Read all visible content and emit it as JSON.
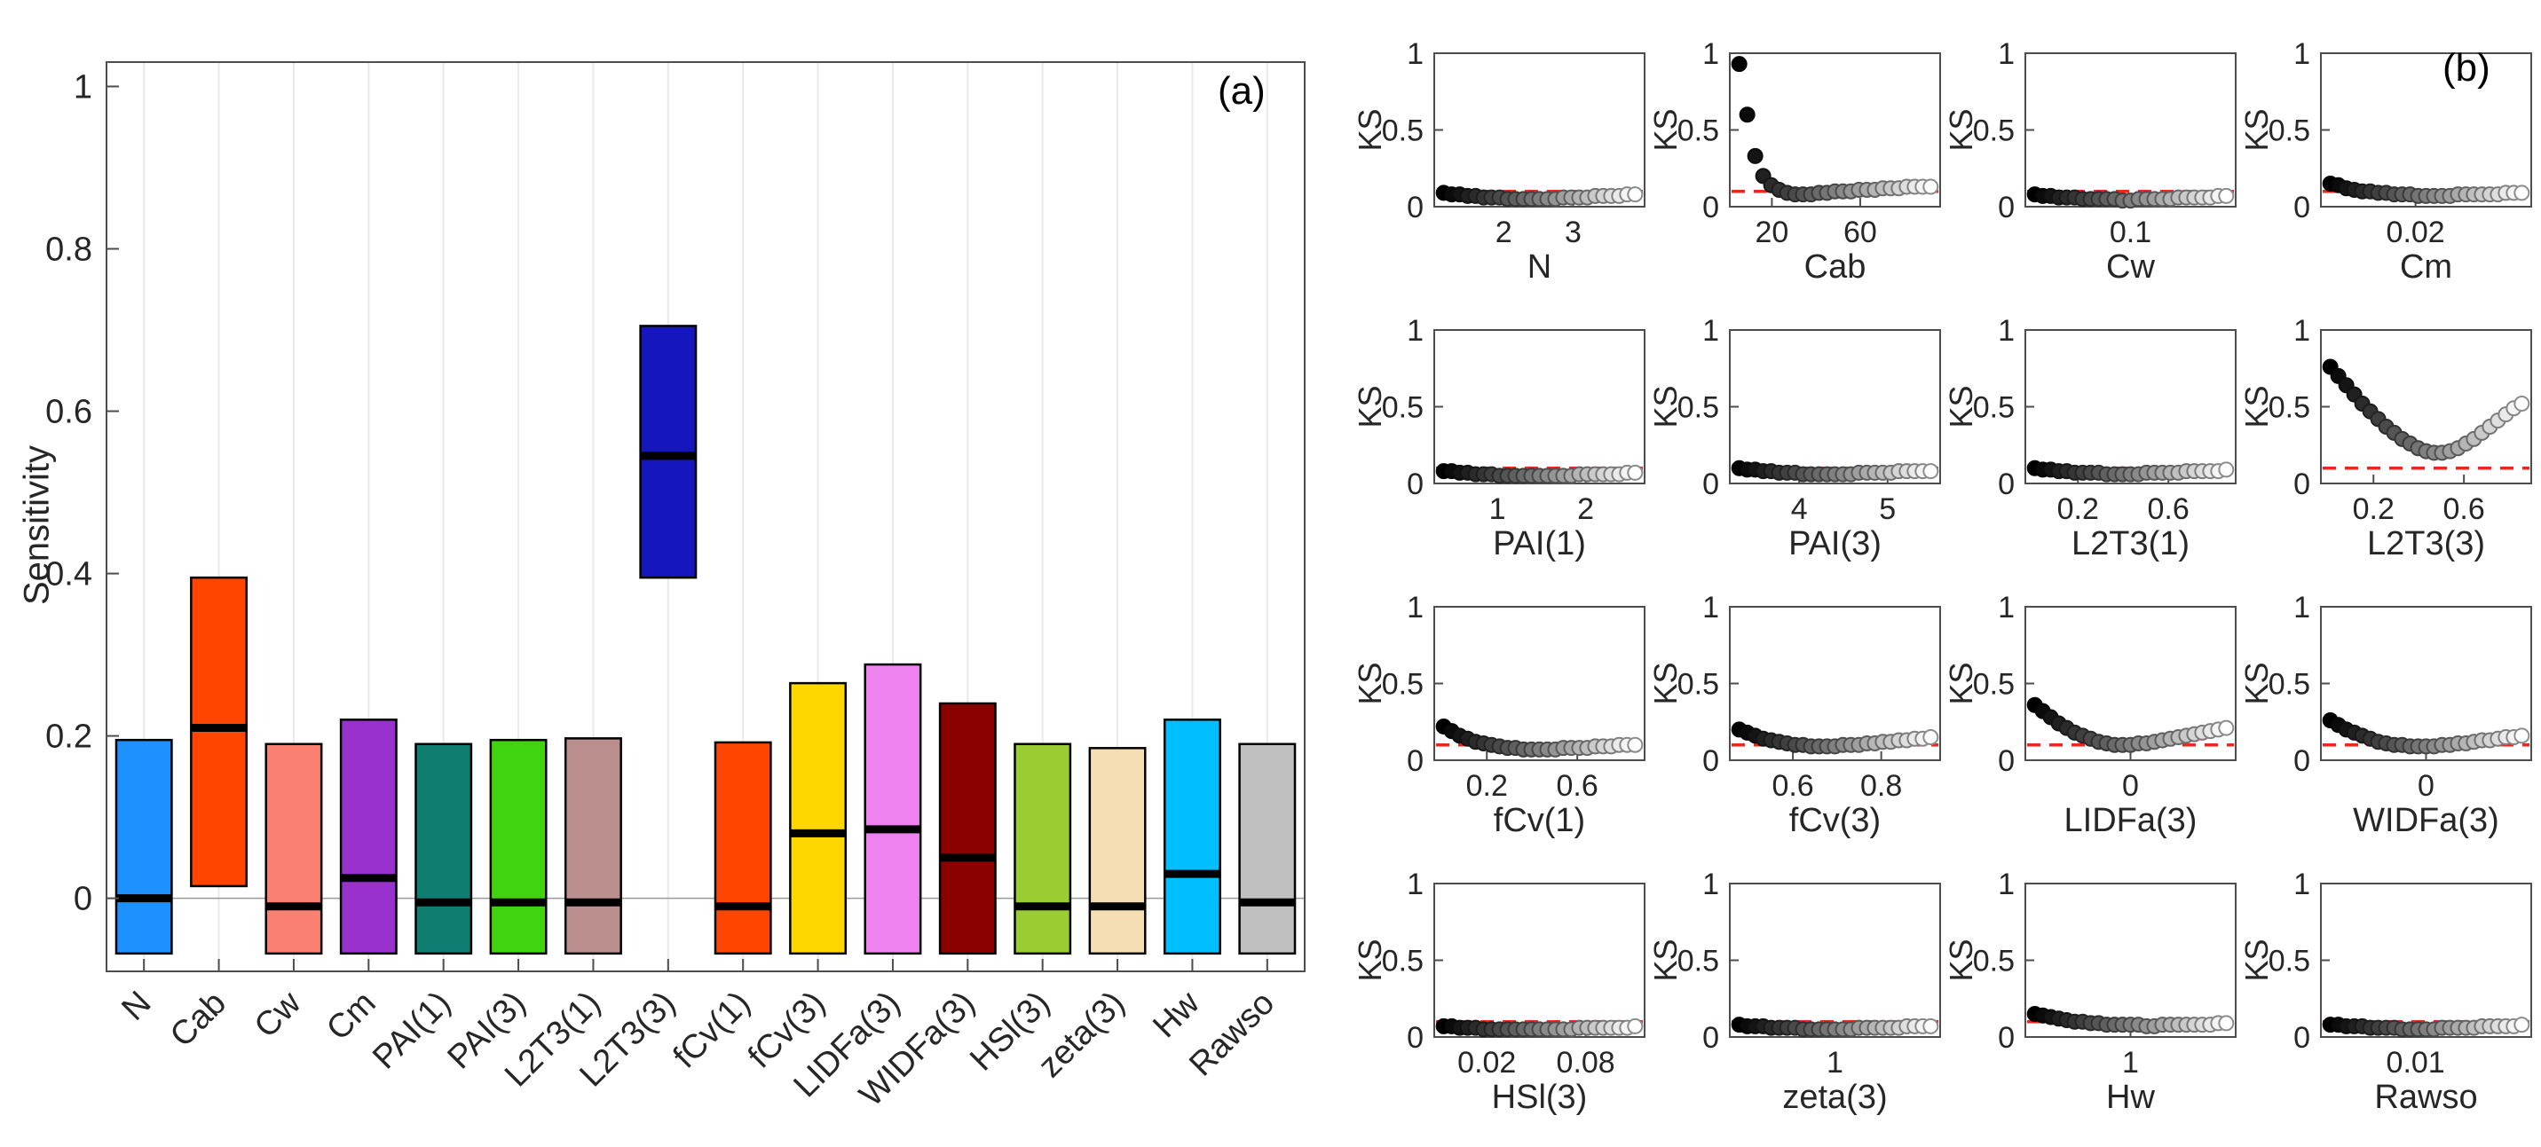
{
  "figure": {
    "background": "#ffffff",
    "panel_a_label": "(a)",
    "panel_b_label": "(b)"
  },
  "chart_data": [
    {
      "id": "panel-a",
      "type": "bar",
      "subtype": "range-bars-with-median",
      "ylabel": "Sensitivity",
      "ylim": [
        -0.09,
        1.03
      ],
      "grid": "vertical-light",
      "zero_line": true,
      "yticks": [
        {
          "label": "0",
          "value": 0
        },
        {
          "label": "0.2",
          "value": 0.2
        },
        {
          "label": "0.4",
          "value": 0.4
        },
        {
          "label": "0.6",
          "value": 0.6
        },
        {
          "label": "0.8",
          "value": 0.8
        },
        {
          "label": "1",
          "value": 1
        }
      ],
      "categories": [
        "N",
        "Cab",
        "Cw",
        "Cm",
        "PAI(1)",
        "PAI(3)",
        "L2T3(1)",
        "L2T3(3)",
        "fCv(1)",
        "fCv(3)",
        "LIDFa(3)",
        "WIDFa(3)",
        "HSl(3)",
        "zeta(3)",
        "Hw",
        "Rawso"
      ],
      "series": [
        {
          "name": "low",
          "values": [
            -0.068,
            0.015,
            -0.068,
            -0.068,
            -0.068,
            -0.068,
            -0.068,
            0.395,
            -0.068,
            -0.068,
            -0.068,
            -0.068,
            -0.068,
            -0.068,
            -0.068,
            -0.068
          ]
        },
        {
          "name": "high",
          "values": [
            0.195,
            0.395,
            0.19,
            0.22,
            0.19,
            0.195,
            0.197,
            0.705,
            0.192,
            0.265,
            0.288,
            0.24,
            0.19,
            0.185,
            0.22,
            0.19
          ]
        },
        {
          "name": "median",
          "values": [
            0.0,
            0.21,
            -0.01,
            0.025,
            -0.005,
            -0.005,
            -0.005,
            0.545,
            -0.01,
            0.08,
            0.085,
            0.05,
            -0.01,
            -0.01,
            0.03,
            -0.005
          ]
        }
      ],
      "bar_colors": [
        "#1E90FF",
        "#FF4500",
        "#FA8072",
        "#9932CC",
        "#0F7D72",
        "#3FD40F",
        "#BC8F8F",
        "#1616BE",
        "#FF4500",
        "#FFD700",
        "#EE82EE",
        "#8B0000",
        "#9ACD32",
        "#F5DEB3",
        "#00BFFF",
        "#C0C0C0"
      ],
      "bar_edge_color": "#000000",
      "median_color": "#000000",
      "axis_color": "#4d4d4d",
      "gridline_color": "#e9e9e9",
      "zero_line_color": "#9a9a9a"
    },
    {
      "id": "panel-b",
      "type": "scatter",
      "subtype": "ks-grid-4x4",
      "ylabel": "KS",
      "ylim": [
        0,
        1
      ],
      "yticks": [
        {
          "label": "0",
          "value": 0
        },
        {
          "label": "0.5",
          "value": 0.5
        },
        {
          "label": "1",
          "value": 1
        }
      ],
      "threshold_line": {
        "value": 0.1,
        "color": "#E8291C",
        "style": "dashed"
      },
      "marker_gradient": [
        "#000000",
        "#ffffff"
      ],
      "marker_edge_gradient": [
        "#000000",
        "#8c8c8c"
      ],
      "axis_color": "#4d4d4d",
      "subplots": [
        {
          "name": "N",
          "xticks": [
            {
              "label": "2",
              "pos": 0.33
            },
            {
              "label": "3",
              "pos": 0.66
            }
          ],
          "ks": [
            0.09,
            0.08,
            0.08,
            0.07,
            0.07,
            0.06,
            0.06,
            0.06,
            0.05,
            0.05,
            0.05,
            0.05,
            0.05,
            0.05,
            0.05,
            0.06,
            0.06,
            0.06,
            0.06,
            0.07,
            0.07,
            0.07,
            0.07,
            0.08,
            0.08
          ]
        },
        {
          "name": "Cab",
          "xticks": [
            {
              "label": "20",
              "pos": 0.2
            },
            {
              "label": "60",
              "pos": 0.62
            }
          ],
          "ks": [
            0.93,
            0.6,
            0.33,
            0.2,
            0.14,
            0.11,
            0.09,
            0.08,
            0.08,
            0.08,
            0.09,
            0.09,
            0.1,
            0.1,
            0.1,
            0.11,
            0.11,
            0.11,
            0.12,
            0.12,
            0.12,
            0.13,
            0.13,
            0.13,
            0.13
          ]
        },
        {
          "name": "Cw",
          "xticks": [
            {
              "label": "0.1",
              "pos": 0.5
            }
          ],
          "ks": [
            0.08,
            0.07,
            0.07,
            0.06,
            0.06,
            0.06,
            0.05,
            0.05,
            0.05,
            0.05,
            0.05,
            0.04,
            0.04,
            0.05,
            0.05,
            0.05,
            0.05,
            0.05,
            0.06,
            0.06,
            0.06,
            0.06,
            0.06,
            0.07,
            0.07
          ]
        },
        {
          "name": "Cm",
          "xticks": [
            {
              "label": "0.02",
              "pos": 0.45
            }
          ],
          "ks": [
            0.15,
            0.14,
            0.12,
            0.11,
            0.1,
            0.1,
            0.09,
            0.09,
            0.08,
            0.08,
            0.08,
            0.07,
            0.07,
            0.07,
            0.07,
            0.07,
            0.08,
            0.08,
            0.08,
            0.08,
            0.08,
            0.08,
            0.09,
            0.09,
            0.09
          ]
        },
        {
          "name": "PAI(1)",
          "xticks": [
            {
              "label": "1",
              "pos": 0.3
            },
            {
              "label": "2",
              "pos": 0.72
            }
          ],
          "ks": [
            0.08,
            0.08,
            0.07,
            0.07,
            0.06,
            0.06,
            0.06,
            0.05,
            0.05,
            0.05,
            0.05,
            0.05,
            0.05,
            0.05,
            0.05,
            0.05,
            0.05,
            0.06,
            0.06,
            0.06,
            0.06,
            0.06,
            0.06,
            0.07,
            0.07
          ]
        },
        {
          "name": "PAI(3)",
          "xticks": [
            {
              "label": "4",
              "pos": 0.33
            },
            {
              "label": "5",
              "pos": 0.75
            }
          ],
          "ks": [
            0.1,
            0.09,
            0.09,
            0.08,
            0.08,
            0.07,
            0.07,
            0.07,
            0.06,
            0.06,
            0.06,
            0.06,
            0.06,
            0.06,
            0.06,
            0.07,
            0.07,
            0.07,
            0.07,
            0.07,
            0.08,
            0.08,
            0.08,
            0.08,
            0.08
          ]
        },
        {
          "name": "L2T3(1)",
          "xticks": [
            {
              "label": "0.2",
              "pos": 0.25
            },
            {
              "label": "0.6",
              "pos": 0.68
            }
          ],
          "ks": [
            0.1,
            0.09,
            0.09,
            0.08,
            0.08,
            0.07,
            0.07,
            0.07,
            0.07,
            0.06,
            0.06,
            0.06,
            0.06,
            0.06,
            0.07,
            0.07,
            0.07,
            0.07,
            0.07,
            0.08,
            0.08,
            0.08,
            0.08,
            0.08,
            0.09
          ]
        },
        {
          "name": "L2T3(3)",
          "xticks": [
            {
              "label": "0.2",
              "pos": 0.25
            },
            {
              "label": "0.6",
              "pos": 0.68
            }
          ],
          "ks": [
            0.76,
            0.7,
            0.64,
            0.58,
            0.52,
            0.47,
            0.42,
            0.37,
            0.33,
            0.29,
            0.26,
            0.23,
            0.21,
            0.2,
            0.2,
            0.21,
            0.23,
            0.26,
            0.29,
            0.33,
            0.37,
            0.41,
            0.45,
            0.49,
            0.52
          ]
        },
        {
          "name": "fCv(1)",
          "xticks": [
            {
              "label": "0.2",
              "pos": 0.25
            },
            {
              "label": "0.6",
              "pos": 0.68
            }
          ],
          "ks": [
            0.22,
            0.19,
            0.16,
            0.14,
            0.12,
            0.11,
            0.1,
            0.09,
            0.08,
            0.08,
            0.07,
            0.07,
            0.07,
            0.07,
            0.07,
            0.08,
            0.08,
            0.08,
            0.08,
            0.09,
            0.09,
            0.09,
            0.1,
            0.1,
            0.1
          ]
        },
        {
          "name": "fCv(3)",
          "xticks": [
            {
              "label": "0.6",
              "pos": 0.3
            },
            {
              "label": "0.8",
              "pos": 0.72
            }
          ],
          "ks": [
            0.2,
            0.18,
            0.16,
            0.14,
            0.13,
            0.12,
            0.11,
            0.1,
            0.1,
            0.09,
            0.09,
            0.09,
            0.09,
            0.1,
            0.1,
            0.1,
            0.11,
            0.11,
            0.12,
            0.12,
            0.13,
            0.13,
            0.14,
            0.14,
            0.15
          ]
        },
        {
          "name": "LIDFa(3)",
          "xticks": [
            {
              "label": "0",
              "pos": 0.5
            }
          ],
          "ks": [
            0.36,
            0.32,
            0.28,
            0.24,
            0.21,
            0.18,
            0.16,
            0.14,
            0.12,
            0.11,
            0.1,
            0.1,
            0.1,
            0.11,
            0.11,
            0.12,
            0.13,
            0.14,
            0.15,
            0.16,
            0.17,
            0.18,
            0.19,
            0.2,
            0.21
          ]
        },
        {
          "name": "WIDFa(3)",
          "xticks": [
            {
              "label": "0",
              "pos": 0.5
            }
          ],
          "ks": [
            0.26,
            0.23,
            0.2,
            0.18,
            0.16,
            0.14,
            0.12,
            0.11,
            0.1,
            0.1,
            0.09,
            0.09,
            0.09,
            0.09,
            0.1,
            0.1,
            0.11,
            0.11,
            0.12,
            0.13,
            0.13,
            0.14,
            0.15,
            0.15,
            0.16
          ]
        },
        {
          "name": "HSl(3)",
          "xticks": [
            {
              "label": "0.02",
              "pos": 0.25
            },
            {
              "label": "0.08",
              "pos": 0.72
            }
          ],
          "ks": [
            0.07,
            0.07,
            0.06,
            0.06,
            0.06,
            0.05,
            0.05,
            0.05,
            0.05,
            0.05,
            0.05,
            0.05,
            0.05,
            0.05,
            0.05,
            0.05,
            0.05,
            0.06,
            0.06,
            0.06,
            0.06,
            0.06,
            0.06,
            0.06,
            0.07
          ]
        },
        {
          "name": "zeta(3)",
          "xticks": [
            {
              "label": "1",
              "pos": 0.5
            }
          ],
          "ks": [
            0.08,
            0.07,
            0.07,
            0.07,
            0.06,
            0.06,
            0.06,
            0.06,
            0.05,
            0.05,
            0.05,
            0.05,
            0.05,
            0.05,
            0.05,
            0.06,
            0.06,
            0.06,
            0.06,
            0.06,
            0.06,
            0.07,
            0.07,
            0.07,
            0.07
          ]
        },
        {
          "name": "Hw",
          "xticks": [
            {
              "label": "1",
              "pos": 0.5
            }
          ],
          "ks": [
            0.15,
            0.14,
            0.13,
            0.12,
            0.11,
            0.1,
            0.1,
            0.09,
            0.09,
            0.08,
            0.08,
            0.08,
            0.08,
            0.08,
            0.07,
            0.07,
            0.08,
            0.08,
            0.08,
            0.08,
            0.08,
            0.08,
            0.08,
            0.09,
            0.09
          ]
        },
        {
          "name": "Rawso",
          "xticks": [
            {
              "label": "0.01",
              "pos": 0.45
            }
          ],
          "ks": [
            0.08,
            0.08,
            0.07,
            0.07,
            0.07,
            0.06,
            0.06,
            0.06,
            0.06,
            0.05,
            0.05,
            0.05,
            0.05,
            0.05,
            0.06,
            0.06,
            0.06,
            0.06,
            0.06,
            0.07,
            0.07,
            0.07,
            0.07,
            0.07,
            0.08
          ]
        }
      ]
    }
  ]
}
